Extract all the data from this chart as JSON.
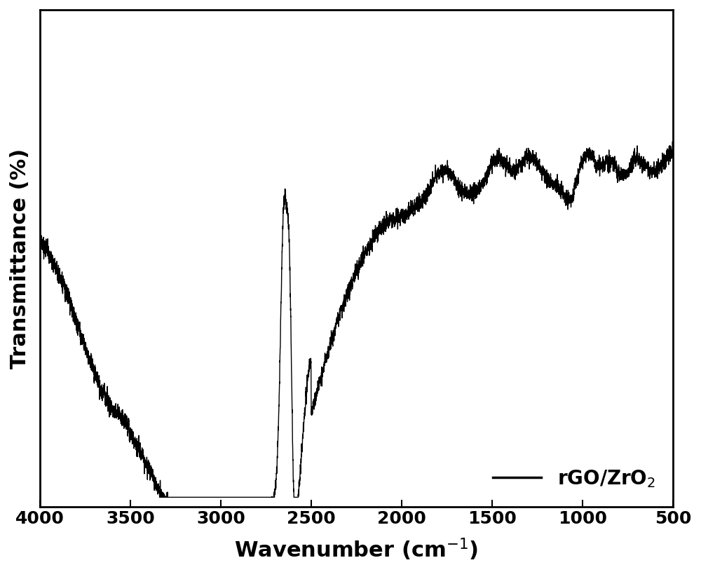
{
  "xlabel": "Wavenumber (cm$^{-1}$)",
  "ylabel": "Transmittance (%)",
  "xlim": [
    4000,
    500
  ],
  "xticks": [
    4000,
    3500,
    3000,
    2500,
    2000,
    1500,
    1000,
    500
  ],
  "legend_label": "rGO/ZrO$_2$",
  "line_color": "#000000",
  "background_color": "#ffffff",
  "xlabel_fontsize": 22,
  "ylabel_fontsize": 22,
  "tick_fontsize": 18,
  "legend_fontsize": 20
}
